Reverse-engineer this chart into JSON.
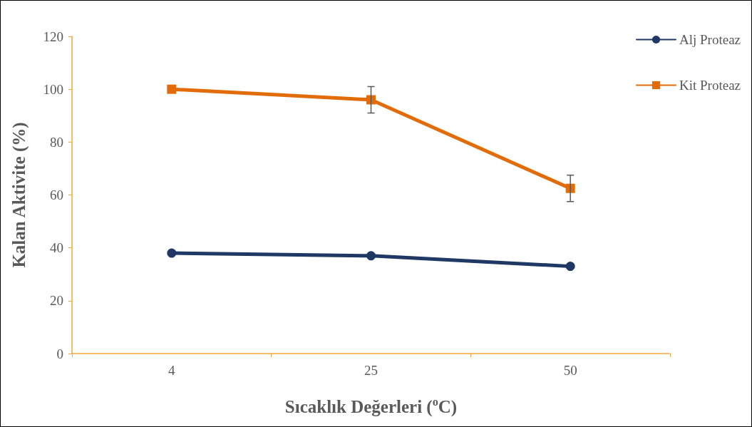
{
  "chart_data": {
    "type": "line",
    "xlabel": "Sıcaklık Değerleri ($^{o}$C)",
    "ylabel": "Kalan Aktivite (%)",
    "categories": [
      "4",
      "25",
      "50"
    ],
    "series": [
      {
        "name": "Alj Proteaz",
        "color": "#1f3864",
        "values": [
          38,
          37,
          33
        ],
        "marker": "circle"
      },
      {
        "name": "Kit Proteaz",
        "color": "#e36c0a",
        "values": [
          100,
          96,
          62.5
        ],
        "errors": [
          null,
          5,
          5
        ],
        "marker": "square"
      }
    ],
    "ylim": [
      0,
      120
    ],
    "yticks": [
      0,
      20,
      40,
      60,
      80,
      100,
      120
    ],
    "grid": false,
    "legend": "top right",
    "line_style": "solid"
  }
}
